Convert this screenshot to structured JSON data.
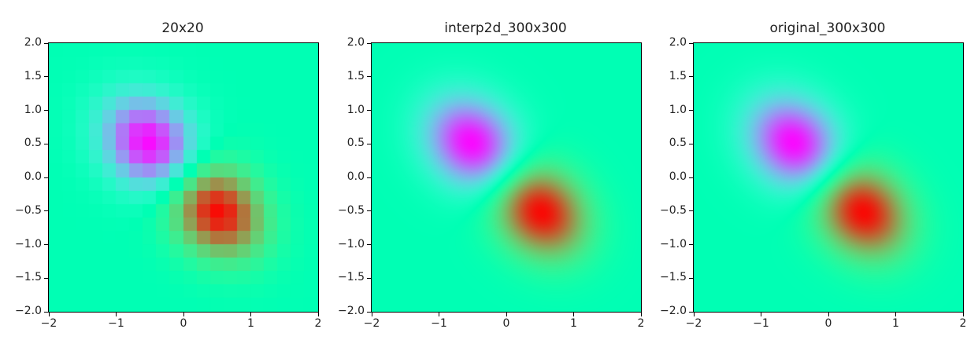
{
  "chart_data": [
    {
      "type": "heatmap",
      "title": "20x20",
      "resolution": 20,
      "rendering": "nearest",
      "function": "z = (x + y) * exp(-5*(x^2 + y^2)/ ... ) dipole: negative lobe near (-0.5, 0.5), positive lobe near (0.5, -0.5)",
      "xlim": [
        -2,
        2
      ],
      "ylim": [
        -2,
        2
      ],
      "xticks": [
        -2,
        -1,
        0,
        1,
        2
      ],
      "yticks": [
        -2.0,
        -1.5,
        -1.0,
        -0.5,
        0.0,
        0.5,
        1.0,
        1.5,
        2.0
      ],
      "xtick_labels": [
        "−2",
        "−1",
        "0",
        "1",
        "2"
      ],
      "ytick_labels": [
        "−2.0",
        "−1.5",
        "−1.0",
        "−0.5",
        "0.0",
        "0.5",
        "1.0",
        "1.5",
        "2.0"
      ],
      "colormap": "rainbow",
      "extrema": [
        {
          "x": -0.5,
          "y": 0.5,
          "value": "min"
        },
        {
          "x": 0.5,
          "y": -0.5,
          "value": "max"
        }
      ]
    },
    {
      "type": "heatmap",
      "title": "interp2d_300x300",
      "resolution": 300,
      "rendering": "smooth",
      "xlim": [
        -2,
        2
      ],
      "ylim": [
        -2,
        2
      ],
      "xticks": [
        -2,
        -1,
        0,
        1,
        2
      ],
      "yticks": [
        -2.0,
        -1.5,
        -1.0,
        -0.5,
        0.0,
        0.5,
        1.0,
        1.5,
        2.0
      ],
      "xtick_labels": [
        "−2",
        "−1",
        "0",
        "1",
        "2"
      ],
      "ytick_labels": [
        "−2.0",
        "−1.5",
        "−1.0",
        "−0.5",
        "0.0",
        "0.5",
        "1.0",
        "1.5",
        "2.0"
      ],
      "colormap": "rainbow",
      "extrema": [
        {
          "x": -0.5,
          "y": 0.5,
          "value": "min"
        },
        {
          "x": 0.5,
          "y": -0.5,
          "value": "max"
        }
      ]
    },
    {
      "type": "heatmap",
      "title": "original_300x300",
      "resolution": 300,
      "rendering": "smooth",
      "xlim": [
        -2,
        2
      ],
      "ylim": [
        -2,
        2
      ],
      "xticks": [
        -2,
        -1,
        0,
        1,
        2
      ],
      "yticks": [
        -2.0,
        -1.5,
        -1.0,
        -0.5,
        0.0,
        0.5,
        1.0,
        1.5,
        2.0
      ],
      "xtick_labels": [
        "−2",
        "−1",
        "0",
        "1",
        "2"
      ],
      "ytick_labels": [
        "−2.0",
        "−1.5",
        "−1.0",
        "−0.5",
        "0.0",
        "0.5",
        "1.0",
        "1.5",
        "2.0"
      ],
      "colormap": "rainbow",
      "extrema": [
        {
          "x": -0.5,
          "y": 0.5,
          "value": "min"
        },
        {
          "x": 0.5,
          "y": -0.5,
          "value": "max"
        }
      ]
    }
  ]
}
